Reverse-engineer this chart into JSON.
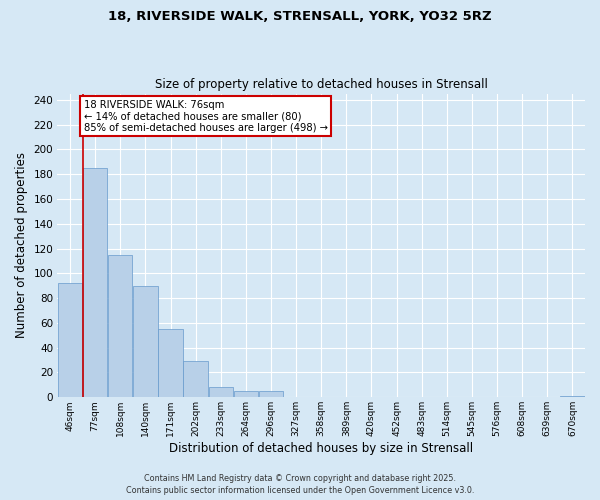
{
  "title_line1": "18, RIVERSIDE WALK, STRENSALL, YORK, YO32 5RZ",
  "title_line2": "Size of property relative to detached houses in Strensall",
  "xlabel": "Distribution of detached houses by size in Strensall",
  "ylabel": "Number of detached properties",
  "categories": [
    "46sqm",
    "77sqm",
    "108sqm",
    "140sqm",
    "171sqm",
    "202sqm",
    "233sqm",
    "264sqm",
    "296sqm",
    "327sqm",
    "358sqm",
    "389sqm",
    "420sqm",
    "452sqm",
    "483sqm",
    "514sqm",
    "545sqm",
    "576sqm",
    "608sqm",
    "639sqm",
    "670sqm"
  ],
  "values": [
    92,
    185,
    115,
    90,
    55,
    29,
    8,
    5,
    5,
    0,
    0,
    0,
    0,
    0,
    0,
    0,
    0,
    0,
    0,
    0,
    1
  ],
  "bar_color": "#b8d0e8",
  "bar_edge_color": "#6699cc",
  "background_color": "#d6e8f5",
  "plot_background_color": "#d6e8f5",
  "grid_color": "#ffffff",
  "ylim": [
    0,
    245
  ],
  "yticks": [
    0,
    20,
    40,
    60,
    80,
    100,
    120,
    140,
    160,
    180,
    200,
    220,
    240
  ],
  "annotation_line1": "18 RIVERSIDE WALK: 76sqm",
  "annotation_line2": "← 14% of detached houses are smaller (80)",
  "annotation_line3": "85% of semi-detached houses are larger (498) →",
  "annotation_box_facecolor": "#ffffff",
  "annotation_box_edgecolor": "#cc0000",
  "vline_color": "#cc0000",
  "vline_x": 0.5,
  "footer_line1": "Contains HM Land Registry data © Crown copyright and database right 2025.",
  "footer_line2": "Contains public sector information licensed under the Open Government Licence v3.0."
}
